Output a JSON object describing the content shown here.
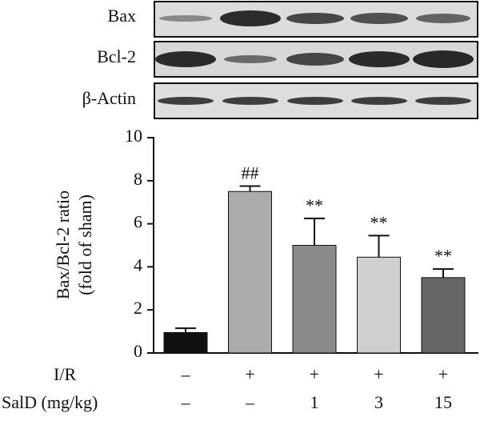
{
  "blots": [
    "Bax",
    "Bcl-2",
    "β-Actin"
  ],
  "chart_data": {
    "type": "bar",
    "ylabel": [
      "Bax/Bcl-2 ratio",
      "(fold of sham)"
    ],
    "values": [
      0.95,
      7.5,
      5.0,
      4.45,
      3.5
    ],
    "errors": [
      0.2,
      0.25,
      1.25,
      1.0,
      0.4
    ],
    "colors": [
      "#111111",
      "#ababab",
      "#8a8a8a",
      "#cfcfcf",
      "#666666"
    ],
    "annotations": [
      null,
      "##",
      "**",
      "**",
      "**"
    ],
    "ylim": [
      0,
      10
    ],
    "yticks": [
      0,
      2,
      4,
      6,
      8,
      10
    ],
    "conditions": [
      {
        "label": "I/R",
        "values": [
          "–",
          "+",
          "+",
          "+",
          "+"
        ]
      },
      {
        "label": "SalD (mg/kg)",
        "values": [
          "–",
          "–",
          "1",
          "3",
          "15"
        ]
      }
    ]
  }
}
